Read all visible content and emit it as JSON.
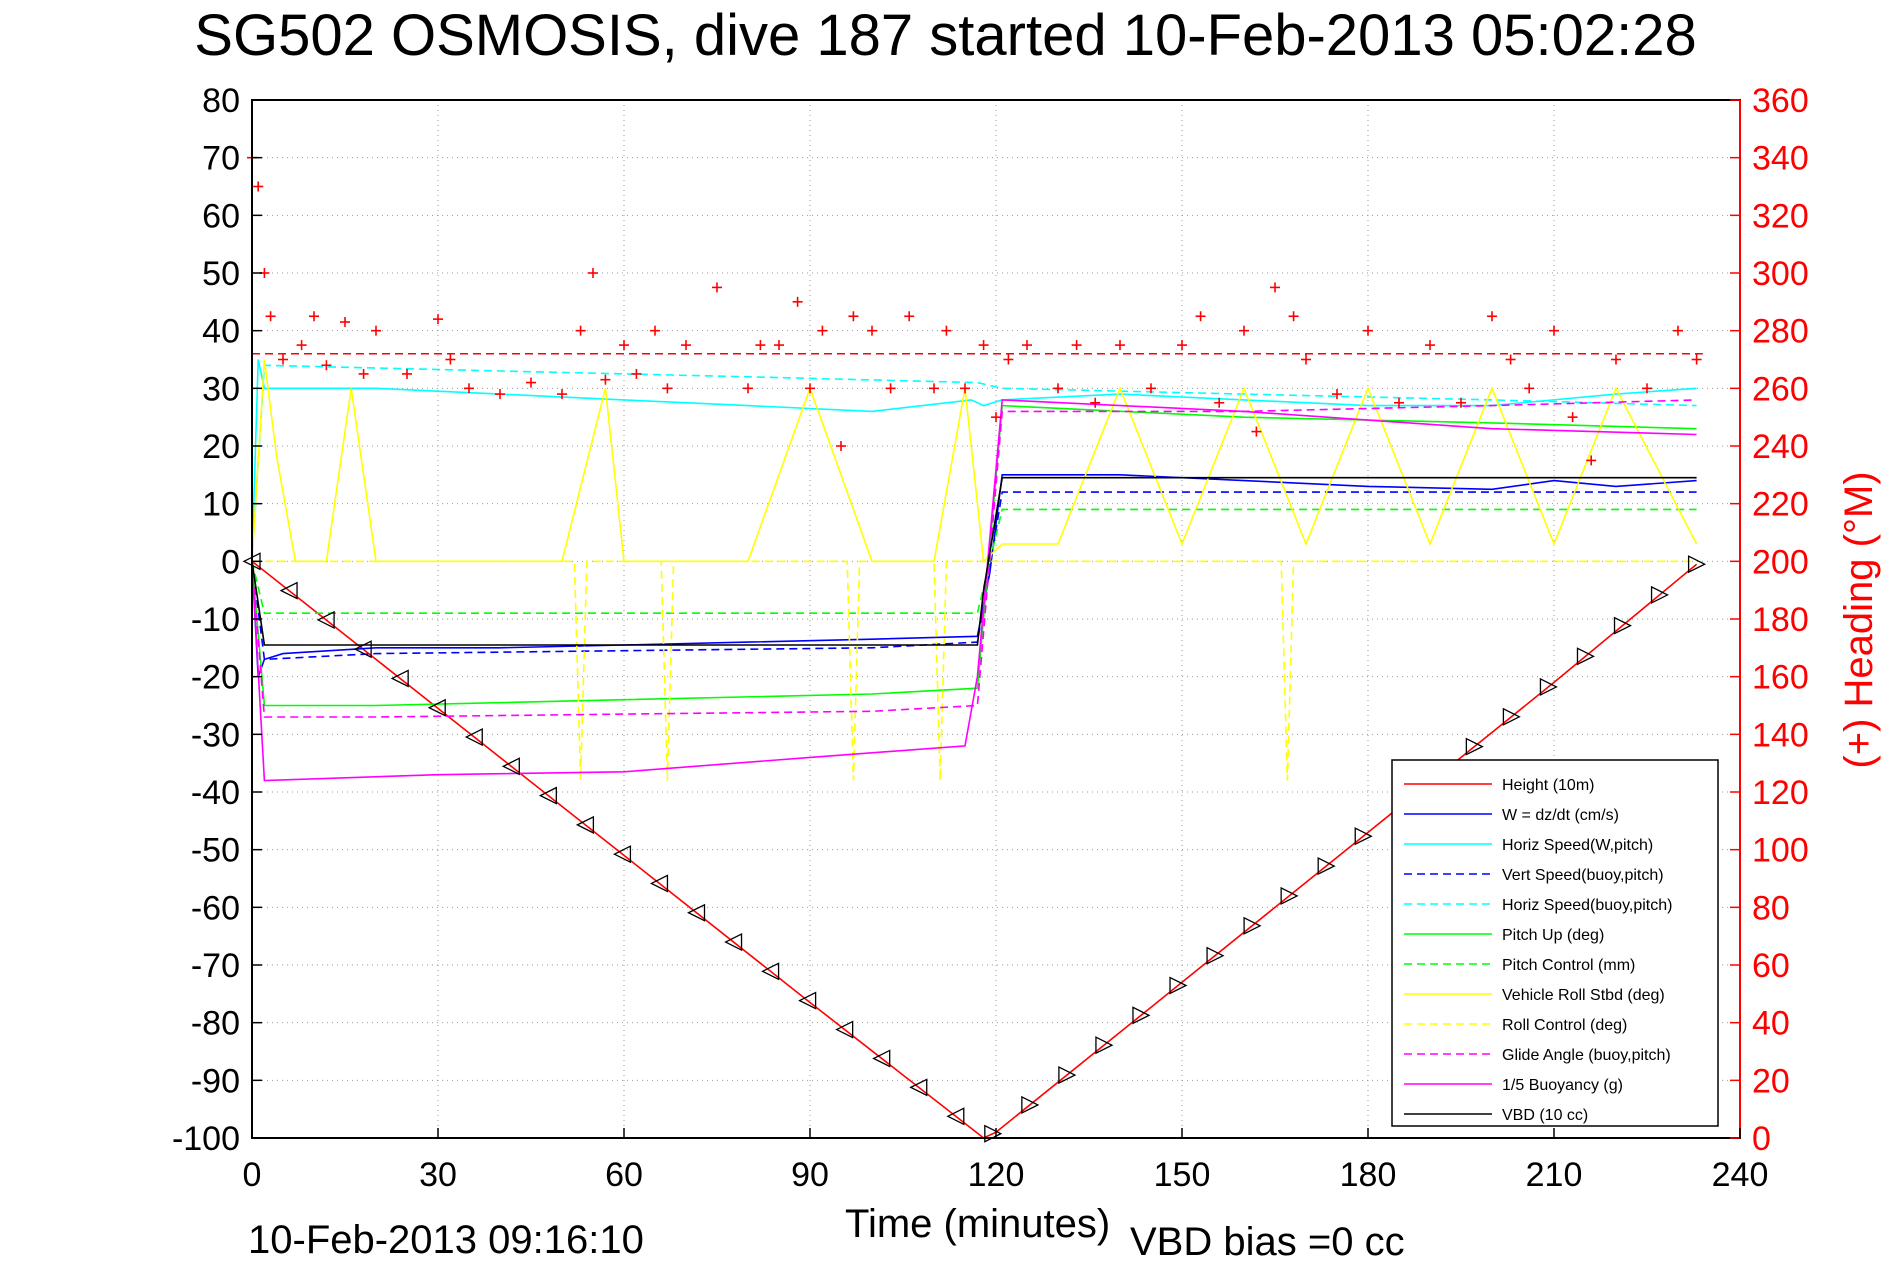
{
  "title": "SG502 OSMOSIS, dive 187 started 10-Feb-2013 05:02:28",
  "footer": {
    "date": "10-Feb-2013 09:16:10",
    "xlabel": "Time (minutes)",
    "vbd_bias": "VBD bias =0 cc"
  },
  "colors": {
    "red": "#ff0000",
    "blue": "#0000ff",
    "cyan": "#00ffff",
    "green": "#00ff00",
    "yellow": "#ffff00",
    "magenta": "#ff00ff",
    "black": "#000000"
  },
  "chart_data": {
    "type": "line",
    "title": "SG502 OSMOSIS, dive 187 started 10-Feb-2013 05:02:28",
    "xlabel": "Time (minutes)",
    "ylabel": "",
    "y2label": "(+) Heading (°M)",
    "xlim": [
      0,
      240
    ],
    "ylim": [
      -100,
      80
    ],
    "y2lim": [
      0,
      360
    ],
    "xticks": [
      0,
      30,
      60,
      90,
      120,
      150,
      180,
      210,
      240
    ],
    "yticks": [
      80,
      70,
      60,
      50,
      40,
      30,
      20,
      10,
      0,
      -10,
      -20,
      -30,
      -40,
      -50,
      -60,
      -70,
      -80,
      -90,
      -100
    ],
    "y2ticks": [
      360,
      340,
      320,
      300,
      280,
      260,
      240,
      220,
      200,
      180,
      160,
      140,
      120,
      100,
      80,
      60,
      40,
      20,
      0
    ],
    "grid": true,
    "legend_position": "bottom-right",
    "series": [
      {
        "name": "Height (10m)",
        "color": "red",
        "style": "solid",
        "x": [
          0,
          30,
          60,
          90,
          118,
          120,
          150,
          180,
          210,
          233
        ],
        "y": [
          0,
          -25.5,
          -51,
          -76.5,
          -100,
          -99,
          -73,
          -47,
          -21,
          -0.5
        ]
      },
      {
        "name": "W = dz/dt (cm/s)",
        "color": "blue",
        "style": "solid",
        "x": [
          0,
          1,
          2,
          5,
          20,
          40,
          60,
          80,
          100,
          117,
          119,
          121,
          140,
          160,
          180,
          200,
          210,
          220,
          233
        ],
        "y": [
          0,
          -20,
          -17,
          -16,
          -15,
          -15,
          -14.5,
          -14,
          -13.5,
          -13,
          -2,
          15,
          15,
          14,
          13,
          12.5,
          14,
          13,
          14
        ]
      },
      {
        "name": "Horiz Speed(W,pitch)",
        "color": "cyan",
        "style": "solid",
        "x": [
          0,
          1,
          2,
          5,
          20,
          40,
          60,
          80,
          100,
          116,
          118,
          121,
          140,
          160,
          180,
          200,
          220,
          233
        ],
        "y": [
          0,
          35,
          30,
          30,
          30,
          29,
          28,
          27,
          26,
          28,
          27,
          28,
          29,
          28,
          27,
          27,
          29,
          30
        ]
      },
      {
        "name": "Vert Speed(buoy,pitch)",
        "color": "blue",
        "style": "dashed",
        "x": [
          0,
          2,
          20,
          60,
          100,
          117,
          121,
          160,
          200,
          233
        ],
        "y": [
          0,
          -17,
          -16,
          -15.5,
          -15,
          -14,
          12,
          12,
          12,
          12
        ]
      },
      {
        "name": "Horiz Speed(buoy,pitch)",
        "color": "cyan",
        "style": "dashed",
        "x": [
          0,
          2,
          40,
          80,
          117,
          121,
          160,
          200,
          233
        ],
        "y": [
          0,
          34,
          33,
          32,
          31,
          30,
          29,
          28,
          27
        ]
      },
      {
        "name": "Pitch Up (deg)",
        "color": "green",
        "style": "solid",
        "x": [
          0,
          2,
          20,
          60,
          100,
          117,
          121,
          160,
          200,
          233
        ],
        "y": [
          0,
          -25,
          -25,
          -24,
          -23,
          -22,
          27,
          25,
          24,
          23
        ]
      },
      {
        "name": "Pitch Control (mm)",
        "color": "green",
        "style": "dashed",
        "x": [
          0,
          2,
          117,
          121,
          233
        ],
        "y": [
          0,
          -9,
          -9,
          9,
          9
        ]
      },
      {
        "name": "Vehicle Roll Stbd (deg)",
        "color": "yellow",
        "style": "solid",
        "x": [
          0,
          2,
          4,
          7,
          12,
          16,
          20,
          30,
          40,
          50,
          57,
          60,
          70,
          80,
          90,
          100,
          110,
          115,
          118,
          121,
          130,
          140,
          150,
          160,
          170,
          180,
          190,
          200,
          210,
          220,
          233
        ],
        "y": [
          0,
          35,
          18,
          0,
          0,
          30,
          0,
          0,
          0,
          0,
          30,
          0,
          0,
          0,
          30,
          0,
          0,
          30,
          0,
          3,
          3,
          30,
          3,
          30,
          3,
          30,
          3,
          30,
          3,
          30,
          3
        ]
      },
      {
        "name": "Roll Control (deg)",
        "color": "yellow",
        "style": "dashed",
        "x": [
          0,
          52,
          53,
          54,
          66,
          67,
          68,
          96,
          97,
          98,
          110,
          111,
          112,
          166,
          167,
          168,
          233
        ],
        "y": [
          0,
          0,
          -38,
          0,
          0,
          -38,
          0,
          0,
          -38,
          0,
          0,
          -38,
          0,
          0,
          -38,
          0,
          0
        ]
      },
      {
        "name": "Glide Angle (buoy,pitch)",
        "color": "magenta",
        "style": "dashed",
        "x": [
          0,
          2,
          20,
          60,
          100,
          117,
          121,
          160,
          200,
          233
        ],
        "y": [
          0,
          -27,
          -27,
          -26.5,
          -26,
          -25,
          26,
          26,
          27,
          28
        ]
      },
      {
        "name": "1/5 Buoyancy (g)",
        "color": "magenta",
        "style": "solid",
        "x": [
          0,
          2,
          30,
          60,
          90,
          115,
          117,
          121,
          160,
          200,
          233
        ],
        "y": [
          0,
          -38,
          -37,
          -36.5,
          -34,
          -32,
          -20,
          28,
          26,
          23,
          22
        ]
      },
      {
        "name": "VBD (10 cc)",
        "color": "black",
        "style": "solid",
        "x": [
          0,
          2,
          117,
          118,
          121,
          200,
          233
        ],
        "y": [
          0,
          -14.5,
          -14.5,
          -5,
          14.5,
          14.5,
          14.5
        ]
      }
    ],
    "heading_markers": {
      "name": "(+) Heading",
      "color": "red",
      "axis": "y2",
      "reference_heading": 272,
      "x": [
        0,
        1,
        2,
        3,
        5,
        8,
        10,
        12,
        15,
        18,
        20,
        25,
        30,
        32,
        35,
        40,
        45,
        50,
        53,
        55,
        57,
        60,
        62,
        65,
        67,
        70,
        75,
        80,
        82,
        85,
        88,
        90,
        92,
        95,
        97,
        100,
        103,
        106,
        110,
        112,
        115,
        118,
        120,
        122,
        125,
        130,
        133,
        136,
        140,
        145,
        150,
        153,
        156,
        160,
        162,
        165,
        168,
        170,
        175,
        180,
        185,
        190,
        195,
        200,
        203,
        206,
        210,
        213,
        216,
        220,
        225,
        230,
        233
      ],
      "y": [
        340,
        330,
        300,
        285,
        270,
        275,
        285,
        268,
        283,
        265,
        280,
        265,
        284,
        270,
        260,
        258,
        262,
        258,
        280,
        300,
        263,
        275,
        265,
        280,
        260,
        275,
        295,
        260,
        275,
        275,
        290,
        260,
        280,
        240,
        285,
        280,
        260,
        285,
        260,
        280,
        260,
        275,
        250,
        270,
        275,
        260,
        275,
        255,
        275,
        260,
        275,
        285,
        255,
        280,
        245,
        295,
        285,
        270,
        258,
        280,
        255,
        275,
        255,
        285,
        270,
        260,
        280,
        250,
        235,
        270,
        260,
        280,
        270
      ]
    }
  }
}
